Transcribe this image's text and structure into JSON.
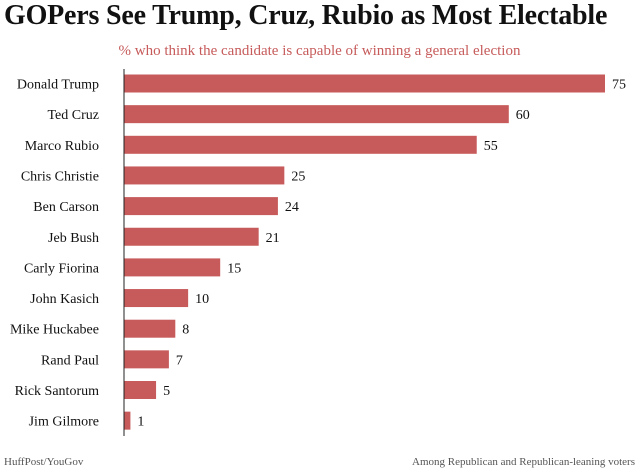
{
  "chart_data": {
    "type": "bar",
    "orientation": "horizontal",
    "title": "GOPers See Trump, Cruz, Rubio as Most Electable",
    "subtitle": "% who think the candidate is capable of winning a general election",
    "categories": [
      "Donald Trump",
      "Ted Cruz",
      "Marco Rubio",
      "Chris Christie",
      "Ben Carson",
      "Jeb Bush",
      "Carly Fiorina",
      "John Kasich",
      "Mike Huckabee",
      "Rand Paul",
      "Rick Santorum",
      "Jim Gilmore"
    ],
    "values": [
      75,
      60,
      55,
      25,
      24,
      21,
      15,
      10,
      8,
      7,
      5,
      1
    ],
    "xlim": [
      0,
      75
    ],
    "grid": false,
    "bar_color": "#c75b5b"
  },
  "colors": {
    "title": "#111111",
    "subtitle": "#c75b5b",
    "axis": "#222222",
    "footer": "#555555"
  },
  "footer": {
    "source": "HuffPost/YouGov",
    "note": "Among Republican and Republican-leaning voters"
  }
}
